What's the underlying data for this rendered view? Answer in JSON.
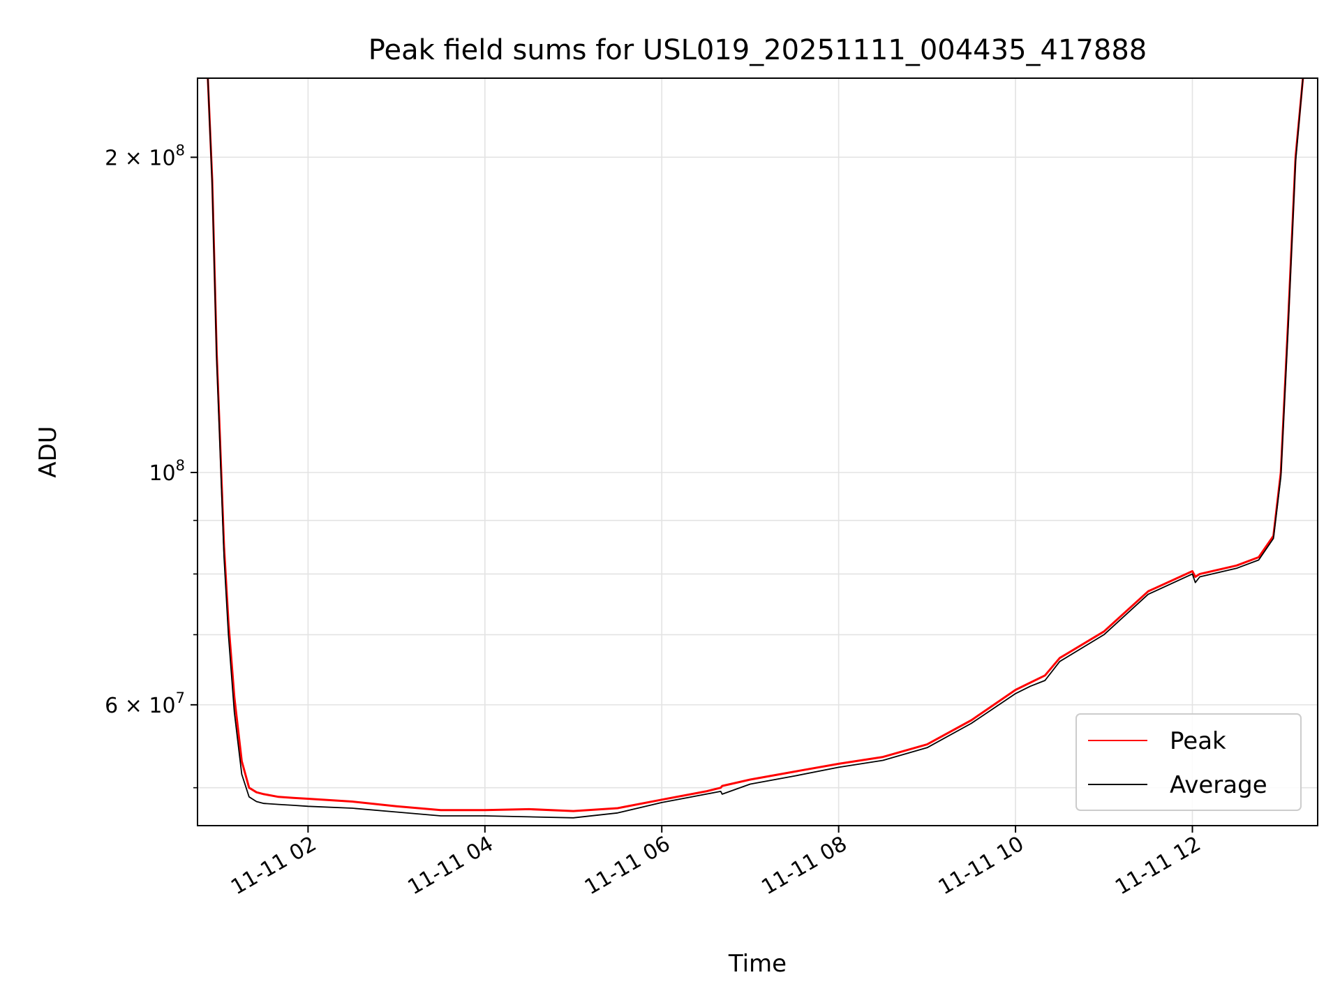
{
  "chart_data": {
    "type": "line",
    "title": "Peak field sums for USL019_20251111_004435_417888",
    "xlabel": "Time",
    "ylabel": "ADU",
    "yscale": "log",
    "grid": true,
    "legend_position": "lower-right",
    "xlim": [
      "2025-11-11 00:45",
      "2025-11-11 13:25"
    ],
    "ylim": [
      46000000,
      238000000
    ],
    "x_ticks": [
      {
        "value": "2025-11-11 02:00",
        "label": "11-11 02"
      },
      {
        "value": "2025-11-11 04:00",
        "label": "11-11 04"
      },
      {
        "value": "2025-11-11 06:00",
        "label": "11-11 06"
      },
      {
        "value": "2025-11-11 08:00",
        "label": "11-11 08"
      },
      {
        "value": "2025-11-11 10:00",
        "label": "11-11 10"
      },
      {
        "value": "2025-11-11 12:00",
        "label": "11-11 12"
      }
    ],
    "y_major_ticks": [
      {
        "value": 60000000,
        "base": "6 × 10",
        "exp": "7"
      },
      {
        "value": 100000000,
        "base": "10",
        "exp": "8"
      },
      {
        "value": 200000000,
        "base": "2 × 10",
        "exp": "8"
      }
    ],
    "y_minor_ticks": [
      50000000,
      70000000,
      80000000,
      90000000
    ],
    "series": [
      {
        "name": "Peak",
        "color": "#ff0000",
        "x": [
          "2025-11-11 00:52",
          "2025-11-11 00:55",
          "2025-11-11 00:58",
          "2025-11-11 01:00",
          "2025-11-11 01:03",
          "2025-11-11 01:06",
          "2025-11-11 01:10",
          "2025-11-11 01:15",
          "2025-11-11 01:20",
          "2025-11-11 01:25",
          "2025-11-11 01:30",
          "2025-11-11 01:40",
          "2025-11-11 01:50",
          "2025-11-11 02:00",
          "2025-11-11 02:30",
          "2025-11-11 03:00",
          "2025-11-11 03:30",
          "2025-11-11 04:00",
          "2025-11-11 04:30",
          "2025-11-11 05:00",
          "2025-11-11 05:30",
          "2025-11-11 06:00",
          "2025-11-11 06:30",
          "2025-11-11 06:40",
          "2025-11-11 06:41",
          "2025-11-11 07:00",
          "2025-11-11 07:30",
          "2025-11-11 08:00",
          "2025-11-11 08:30",
          "2025-11-11 09:00",
          "2025-11-11 09:30",
          "2025-11-11 10:00",
          "2025-11-11 10:10",
          "2025-11-11 10:20",
          "2025-11-11 10:30",
          "2025-11-11 11:00",
          "2025-11-11 11:30",
          "2025-11-11 12:00",
          "2025-11-11 12:02",
          "2025-11-11 12:05",
          "2025-11-11 12:30",
          "2025-11-11 12:45",
          "2025-11-11 12:55",
          "2025-11-11 13:00",
          "2025-11-11 13:05",
          "2025-11-11 13:10",
          "2025-11-11 13:15"
        ],
        "values": [
          238000000,
          190000000,
          130000000,
          110000000,
          85000000,
          72000000,
          61000000,
          53000000,
          50000000,
          49500000,
          49300000,
          49000000,
          48900000,
          48800000,
          48500000,
          48000000,
          47600000,
          47600000,
          47700000,
          47500000,
          47800000,
          48700000,
          49600000,
          50000000,
          50200000,
          50900000,
          51800000,
          52700000,
          53500000,
          55000000,
          58000000,
          62000000,
          63000000,
          64000000,
          66500000,
          70500000,
          77000000,
          80500000,
          79500000,
          80000000,
          81500000,
          83000000,
          87000000,
          100000000,
          140000000,
          200000000,
          238000000
        ]
      },
      {
        "name": "Average",
        "color": "#000000",
        "x": [
          "2025-11-11 00:52",
          "2025-11-11 00:55",
          "2025-11-11 00:58",
          "2025-11-11 01:00",
          "2025-11-11 01:03",
          "2025-11-11 01:06",
          "2025-11-11 01:10",
          "2025-11-11 01:15",
          "2025-11-11 01:20",
          "2025-11-11 01:25",
          "2025-11-11 01:30",
          "2025-11-11 01:40",
          "2025-11-11 01:50",
          "2025-11-11 02:00",
          "2025-11-11 02:30",
          "2025-11-11 03:00",
          "2025-11-11 03:30",
          "2025-11-11 04:00",
          "2025-11-11 04:30",
          "2025-11-11 05:00",
          "2025-11-11 05:30",
          "2025-11-11 06:00",
          "2025-11-11 06:30",
          "2025-11-11 06:40",
          "2025-11-11 06:41",
          "2025-11-11 07:00",
          "2025-11-11 07:30",
          "2025-11-11 08:00",
          "2025-11-11 08:30",
          "2025-11-11 09:00",
          "2025-11-11 09:30",
          "2025-11-11 10:00",
          "2025-11-11 10:10",
          "2025-11-11 10:20",
          "2025-11-11 10:30",
          "2025-11-11 11:00",
          "2025-11-11 11:30",
          "2025-11-11 12:00",
          "2025-11-11 12:02",
          "2025-11-11 12:05",
          "2025-11-11 12:30",
          "2025-11-11 12:45",
          "2025-11-11 12:55",
          "2025-11-11 13:00",
          "2025-11-11 13:05",
          "2025-11-11 13:10",
          "2025-11-11 13:15"
        ],
        "values": [
          238000000,
          188000000,
          128000000,
          108000000,
          83000000,
          70000000,
          59000000,
          51500000,
          49000000,
          48500000,
          48300000,
          48200000,
          48100000,
          48000000,
          47800000,
          47400000,
          47000000,
          47000000,
          46900000,
          46800000,
          47300000,
          48400000,
          49300000,
          49600000,
          49300000,
          50400000,
          51300000,
          52300000,
          53100000,
          54600000,
          57600000,
          61500000,
          62500000,
          63300000,
          66000000,
          70000000,
          76500000,
          80000000,
          78500000,
          79500000,
          81000000,
          82500000,
          86500000,
          99000000,
          138000000,
          198000000,
          238000000
        ]
      }
    ]
  }
}
